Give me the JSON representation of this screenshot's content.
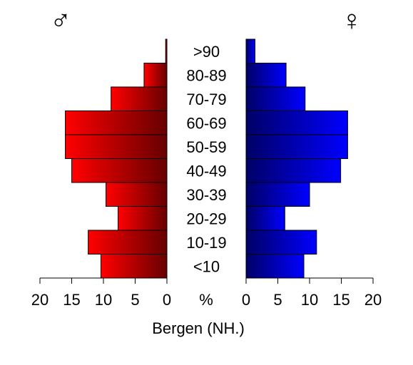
{
  "chart_data": {
    "type": "bar",
    "orientation": "horizontal-pyramid",
    "title": "",
    "caption": "Bergen (NH.)",
    "center_unit": "%",
    "male_symbol": "♂",
    "female_symbol": "♀",
    "categories": [
      ">90",
      "80-89",
      "70-79",
      "60-69",
      "50-59",
      "40-49",
      "30-39",
      "20-29",
      "10-19",
      "<10"
    ],
    "series": [
      {
        "name": "♂",
        "values": [
          0.2,
          3.6,
          8.8,
          16.0,
          16.0,
          15.0,
          9.6,
          7.7,
          12.4,
          10.4
        ]
      },
      {
        "name": "♀",
        "values": [
          1.4,
          6.3,
          9.3,
          16.0,
          16.0,
          14.9,
          10.0,
          6.1,
          11.1,
          9.1
        ]
      }
    ],
    "xlim": [
      0,
      20
    ],
    "ticks": [
      0,
      5,
      10,
      15,
      20
    ],
    "colors": {
      "male": "#ff0000",
      "male_dark": "#660000",
      "female": "#0000ff",
      "female_dark": "#000066"
    }
  }
}
